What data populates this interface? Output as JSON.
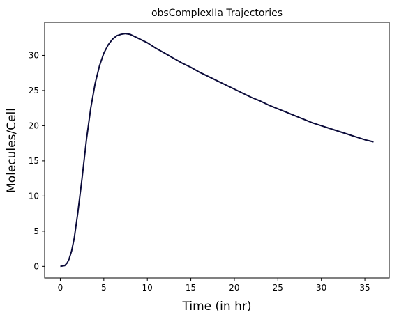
{
  "chart_data": {
    "type": "line",
    "title": "obsComplexIIa Trajectories",
    "xlabel": "Time (in hr)",
    "ylabel": "Molecules/Cell",
    "xlim": [
      -1.8,
      37.8
    ],
    "ylim": [
      -1.65,
      34.7
    ],
    "xticks": [
      0,
      5,
      10,
      15,
      20,
      25,
      30,
      35
    ],
    "yticks": [
      0,
      5,
      10,
      15,
      20,
      25,
      30
    ],
    "grid": false,
    "series": [
      {
        "color": "#0b0b3a",
        "x": [
          0,
          0.5,
          0.8,
          1.0,
          1.3,
          1.6,
          2.0,
          2.5,
          3.0,
          3.5,
          4.0,
          4.5,
          5.0,
          5.5,
          6.0,
          6.5,
          7.0,
          7.5,
          8.0,
          8.5,
          9.0,
          10.0,
          11.0,
          12.0,
          13.0,
          14.0,
          15.0,
          16.0,
          17.0,
          18.0,
          19.0,
          20.0,
          21.0,
          22.0,
          23.0,
          24.0,
          25.0,
          26.0,
          27.0,
          28.0,
          29.0,
          30.0,
          31.0,
          32.0,
          33.0,
          34.0,
          35.0,
          36.0
        ],
        "y": [
          0,
          0.1,
          0.5,
          1.0,
          2.2,
          4.0,
          7.5,
          12.5,
          18.0,
          22.5,
          26.0,
          28.5,
          30.3,
          31.5,
          32.3,
          32.8,
          33.0,
          33.1,
          33.0,
          32.7,
          32.4,
          31.8,
          31.0,
          30.3,
          29.6,
          28.9,
          28.3,
          27.6,
          27.0,
          26.4,
          25.8,
          25.2,
          24.6,
          24.0,
          23.5,
          22.9,
          22.4,
          21.9,
          21.4,
          20.9,
          20.4,
          20.0,
          19.6,
          19.2,
          18.8,
          18.4,
          18.0,
          17.7
        ]
      }
    ]
  }
}
